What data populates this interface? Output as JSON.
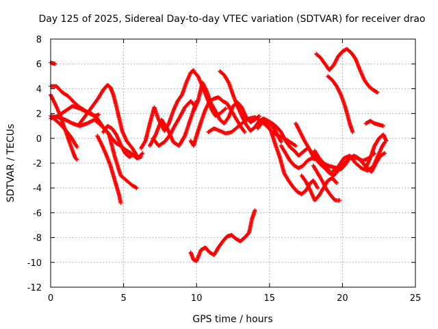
{
  "chart_data": {
    "type": "scatter",
    "title": "Day 125 of 2025, Sidereal Day-to-day VTEC variation (SDTVAR) for receiver drao",
    "xlabel": "GPS time / hours",
    "ylabel": "SDTVAR / TECUs",
    "xlim": [
      0,
      25
    ],
    "ylim": [
      -12,
      8
    ],
    "x_ticks": [
      "0",
      "5",
      "10",
      "15",
      "20",
      "25"
    ],
    "y_ticks": [
      "-12",
      "-10",
      "-8",
      "-6",
      "-4",
      "-2",
      "0",
      "2",
      "4",
      "6",
      "8"
    ],
    "grid": true,
    "marker": "+",
    "color": "#ff0000",
    "series": [
      {
        "name": "s1",
        "x": [
          0.0,
          0.3
        ],
        "y": [
          6.1,
          6.0
        ]
      },
      {
        "name": "s2",
        "x": [
          0.0,
          0.4,
          0.8,
          1.2,
          1.6,
          2.0,
          2.4,
          2.8,
          3.2,
          3.6,
          4.0,
          4.4,
          4.8,
          5.2,
          5.6,
          5.9
        ],
        "y": [
          4.2,
          4.2,
          3.7,
          3.4,
          2.9,
          2.5,
          2.2,
          2.0,
          1.6,
          0.9,
          0.3,
          -1.5,
          -3.0,
          -3.4,
          -3.8,
          -4.0
        ]
      },
      {
        "name": "s3",
        "x": [
          0.0,
          0.3,
          0.6,
          0.9,
          1.2,
          1.5,
          1.7,
          1.8
        ],
        "y": [
          3.5,
          2.8,
          2.0,
          1.0,
          0.0,
          -1.0,
          -1.6,
          -1.7
        ]
      },
      {
        "name": "s4",
        "x": [
          0.0,
          0.5,
          1.0,
          1.5,
          2.0,
          2.5,
          3.0,
          3.5,
          3.9,
          4.2,
          4.5,
          4.8,
          5.1,
          5.5,
          5.9,
          6.2
        ],
        "y": [
          1.8,
          1.7,
          1.5,
          1.2,
          1.0,
          1.2,
          1.5,
          1.0,
          0.5,
          0.0,
          -0.4,
          -0.6,
          -0.9,
          -1.2,
          -1.6,
          -1.5
        ]
      },
      {
        "name": "s5",
        "x": [
          0.0,
          0.5,
          1.0,
          1.5,
          2.0,
          2.5,
          3.0,
          3.3
        ],
        "y": [
          1.6,
          1.8,
          2.2,
          2.6,
          2.4,
          2.1,
          1.8,
          1.9
        ]
      },
      {
        "name": "s6",
        "x": [
          0.2,
          0.6,
          1.0,
          1.4,
          1.8
        ],
        "y": [
          1.6,
          1.2,
          0.7,
          0.1,
          -0.7
        ]
      },
      {
        "name": "s7",
        "x": [
          2.0,
          2.5,
          3.0,
          3.3,
          3.6,
          3.9,
          4.1,
          4.3,
          4.5,
          4.7,
          4.9,
          5.2,
          5.6,
          6.0,
          6.3
        ],
        "y": [
          1.2,
          2.0,
          2.8,
          3.3,
          3.9,
          4.3,
          4.1,
          3.5,
          2.6,
          1.6,
          0.6,
          -0.2,
          -0.8,
          -1.6,
          -1.2
        ]
      },
      {
        "name": "s8",
        "x": [
          3.2,
          3.5,
          3.8,
          4.1,
          4.3,
          4.5,
          4.7,
          4.8
        ],
        "y": [
          0.2,
          -0.5,
          -1.3,
          -2.2,
          -3.0,
          -3.8,
          -4.6,
          -5.2
        ]
      },
      {
        "name": "s9",
        "x": [
          3.6,
          3.9,
          4.2,
          4.5,
          4.8,
          5.1,
          5.4,
          5.8
        ],
        "y": [
          0.5,
          1.0,
          0.8,
          0.3,
          -0.5,
          -1.2,
          -1.5,
          -1.2
        ]
      },
      {
        "name": "s10",
        "x": [
          6.2,
          6.5,
          6.8,
          7.1,
          7.4,
          7.8,
          8.1,
          8.4,
          8.7,
          9.0,
          9.3,
          9.6,
          9.8
        ],
        "y": [
          -0.8,
          -0.2,
          1.2,
          2.5,
          1.5,
          0.6,
          1.2,
          2.2,
          3.0,
          3.5,
          4.5,
          5.3,
          5.5
        ]
      },
      {
        "name": "s11",
        "x": [
          6.8,
          7.2,
          7.6,
          8.0,
          8.4,
          8.8,
          9.2,
          9.6,
          10.0
        ],
        "y": [
          -0.6,
          0.3,
          1.5,
          0.8,
          -0.3,
          -0.6,
          0.2,
          1.6,
          3.0
        ]
      },
      {
        "name": "s12",
        "x": [
          7.0,
          7.4,
          7.8,
          8.2,
          8.5,
          8.8,
          9.2,
          9.6,
          9.9
        ],
        "y": [
          0.0,
          -0.6,
          -0.3,
          0.3,
          1.0,
          1.6,
          2.5,
          3.0,
          2.6
        ]
      },
      {
        "name": "s13",
        "x": [
          9.6,
          9.8,
          10.0,
          10.3,
          10.6,
          10.9,
          11.2,
          11.5,
          11.8,
          12.1,
          12.4,
          12.7,
          13.0,
          13.3
        ],
        "y": [
          -0.2,
          -0.6,
          0.2,
          1.3,
          2.3,
          3.0,
          3.2,
          3.3,
          3.0,
          2.8,
          2.2,
          1.6,
          1.0,
          0.5
        ]
      },
      {
        "name": "s14",
        "x": [
          9.8,
          10.1,
          10.4,
          10.7,
          11.0,
          11.3,
          11.6,
          12.0
        ],
        "y": [
          5.4,
          5.0,
          4.2,
          3.3,
          2.4,
          1.8,
          2.0,
          2.4
        ]
      },
      {
        "name": "s15",
        "x": [
          9.8,
          10.1,
          10.4,
          10.7,
          11.0,
          11.3,
          11.6,
          11.9,
          12.2,
          12.5,
          12.8,
          13.1,
          13.4,
          13.7,
          14.0,
          14.3
        ],
        "y": [
          2.2,
          3.0,
          4.5,
          3.8,
          2.8,
          2.2,
          1.5,
          1.2,
          1.7,
          2.6,
          2.9,
          2.5,
          1.7,
          1.3,
          1.5,
          1.8
        ]
      },
      {
        "name": "s16",
        "x": [
          11.6,
          11.9,
          12.2,
          12.5,
          12.8,
          13.1,
          13.4,
          13.7,
          14.0,
          14.3,
          14.6,
          14.9,
          15.2,
          15.5,
          15.8
        ],
        "y": [
          5.4,
          5.1,
          4.5,
          3.5,
          2.6,
          1.8,
          1.1,
          0.6,
          0.9,
          1.4,
          1.6,
          1.4,
          1.0,
          0.4,
          -0.3
        ]
      },
      {
        "name": "s17",
        "x": [
          10.8,
          11.2,
          11.6,
          12.0,
          12.4,
          12.8,
          13.2,
          13.6,
          14.0,
          14.4,
          14.8,
          15.2,
          15.6,
          16.0,
          16.4,
          16.8
        ],
        "y": [
          0.5,
          0.8,
          0.6,
          0.4,
          0.5,
          0.9,
          1.3,
          1.6,
          1.7,
          1.4,
          1.0,
          0.5,
          0.2,
          0.0,
          -0.3,
          -0.6
        ]
      },
      {
        "name": "s18",
        "x": [
          9.6,
          9.8,
          10.0,
          10.3,
          10.6,
          10.9,
          11.2,
          11.5,
          11.8,
          12.1,
          12.4,
          12.7,
          13.0,
          13.3,
          13.6,
          13.8,
          14.0
        ],
        "y": [
          -9.2,
          -9.8,
          -9.9,
          -9.0,
          -8.8,
          -9.2,
          -9.4,
          -8.8,
          -8.3,
          -7.9,
          -7.8,
          -8.1,
          -8.3,
          -8.0,
          -7.6,
          -6.5,
          -5.8
        ]
      },
      {
        "name": "s19",
        "x": [
          14.2,
          14.5,
          14.8,
          15.1,
          15.4,
          15.7,
          16.0,
          16.3,
          16.6,
          16.9,
          17.2,
          17.5,
          17.8,
          18.0,
          18.3
        ],
        "y": [
          0.8,
          1.3,
          1.2,
          0.6,
          -0.5,
          -1.5,
          -2.8,
          -3.4,
          -3.9,
          -4.3,
          -4.5,
          -4.2,
          -3.6,
          -3.4,
          -4.0
        ]
      },
      {
        "name": "s20",
        "x": [
          14.6,
          14.9,
          15.2,
          15.5,
          15.8,
          16.1,
          16.4,
          16.7,
          17.0,
          17.3,
          17.6,
          17.9,
          18.2,
          18.5,
          18.8,
          19.1
        ],
        "y": [
          1.5,
          1.4,
          1.2,
          0.9,
          0.5,
          -0.2,
          -0.7,
          -1.0,
          -1.4,
          -1.1,
          -0.8,
          -1.1,
          -1.6,
          -2.0,
          -2.3,
          -2.6
        ]
      },
      {
        "name": "s21",
        "x": [
          15.8,
          16.1,
          16.4,
          16.7,
          17.0,
          17.3,
          17.6,
          17.9,
          18.2,
          18.5,
          18.8,
          19.1,
          19.4,
          19.7,
          20.0,
          20.3,
          20.6,
          21.0,
          21.4,
          21.8,
          22.2
        ],
        "y": [
          -0.6,
          -1.2,
          -1.8,
          -2.2,
          -2.4,
          -2.2,
          -1.8,
          -1.6,
          -1.7,
          -2.1,
          -2.4,
          -2.8,
          -3.0,
          -2.6,
          -2.2,
          -1.8,
          -1.5,
          -1.6,
          -1.8,
          -1.6,
          -1.2
        ]
      },
      {
        "name": "s22",
        "x": [
          17.2,
          17.5,
          17.8,
          18.1,
          18.4,
          18.7,
          19.0,
          19.3,
          19.6
        ],
        "y": [
          -3.0,
          -3.5,
          -4.2,
          -5.0,
          -4.6,
          -4.0,
          -3.4,
          -3.2,
          -3.6
        ]
      },
      {
        "name": "s23",
        "x": [
          18.0,
          18.3,
          18.6,
          18.9,
          19.2,
          19.5,
          19.8
        ],
        "y": [
          -2.2,
          -2.8,
          -3.4,
          -4.1,
          -4.6,
          -5.0,
          -5.0
        ]
      },
      {
        "name": "s24",
        "x": [
          16.8,
          17.1,
          17.4,
          17.7,
          18.0
        ],
        "y": [
          1.2,
          0.5,
          -0.2,
          -0.8,
          -1.5
        ]
      },
      {
        "name": "s25",
        "x": [
          18.1,
          18.4,
          18.7,
          19.0,
          19.3,
          19.6,
          19.9,
          20.2,
          20.5,
          20.8,
          21.1,
          21.4,
          21.7,
          22.0,
          22.3,
          22.6,
          22.9
        ],
        "y": [
          -1.0,
          -1.6,
          -2.0,
          -2.2,
          -2.3,
          -2.4,
          -2.5,
          -2.1,
          -1.6,
          -1.4,
          -1.6,
          -2.0,
          -2.4,
          -2.7,
          -2.0,
          -1.4,
          -1.2
        ]
      },
      {
        "name": "s26",
        "x": [
          19.3,
          19.7,
          20.1,
          20.5,
          20.9,
          21.3,
          21.7,
          22.1,
          22.4,
          22.7,
          22.9
        ],
        "y": [
          -2.7,
          -2.3,
          -1.6,
          -1.4,
          -2.0,
          -2.4,
          -2.6,
          -2.3,
          -1.5,
          -0.7,
          -0.3
        ]
      },
      {
        "name": "s27",
        "x": [
          21.6,
          21.9,
          22.2,
          22.5,
          22.8,
          23.0
        ],
        "y": [
          -2.4,
          -1.6,
          -0.6,
          0.0,
          0.3,
          -0.2
        ]
      },
      {
        "name": "s28",
        "x": [
          21.6,
          21.9,
          22.2,
          22.5,
          22.8
        ],
        "y": [
          1.2,
          1.4,
          1.2,
          1.1,
          1.0
        ]
      },
      {
        "name": "s29",
        "x": [
          18.2,
          18.5,
          18.8,
          19.1,
          19.4,
          19.7,
          20.0,
          20.3,
          20.6,
          20.9,
          21.2,
          21.5,
          21.8,
          22.1,
          22.4
        ],
        "y": [
          6.8,
          6.5,
          6.0,
          5.5,
          5.9,
          6.6,
          7.0,
          7.2,
          6.9,
          6.4,
          5.5,
          4.7,
          4.2,
          3.9,
          3.7
        ]
      },
      {
        "name": "s30",
        "x": [
          19.0,
          19.3,
          19.6,
          19.9,
          20.2,
          20.5,
          20.7
        ],
        "y": [
          5.0,
          4.7,
          4.2,
          3.5,
          2.5,
          1.2,
          0.5
        ]
      }
    ]
  }
}
